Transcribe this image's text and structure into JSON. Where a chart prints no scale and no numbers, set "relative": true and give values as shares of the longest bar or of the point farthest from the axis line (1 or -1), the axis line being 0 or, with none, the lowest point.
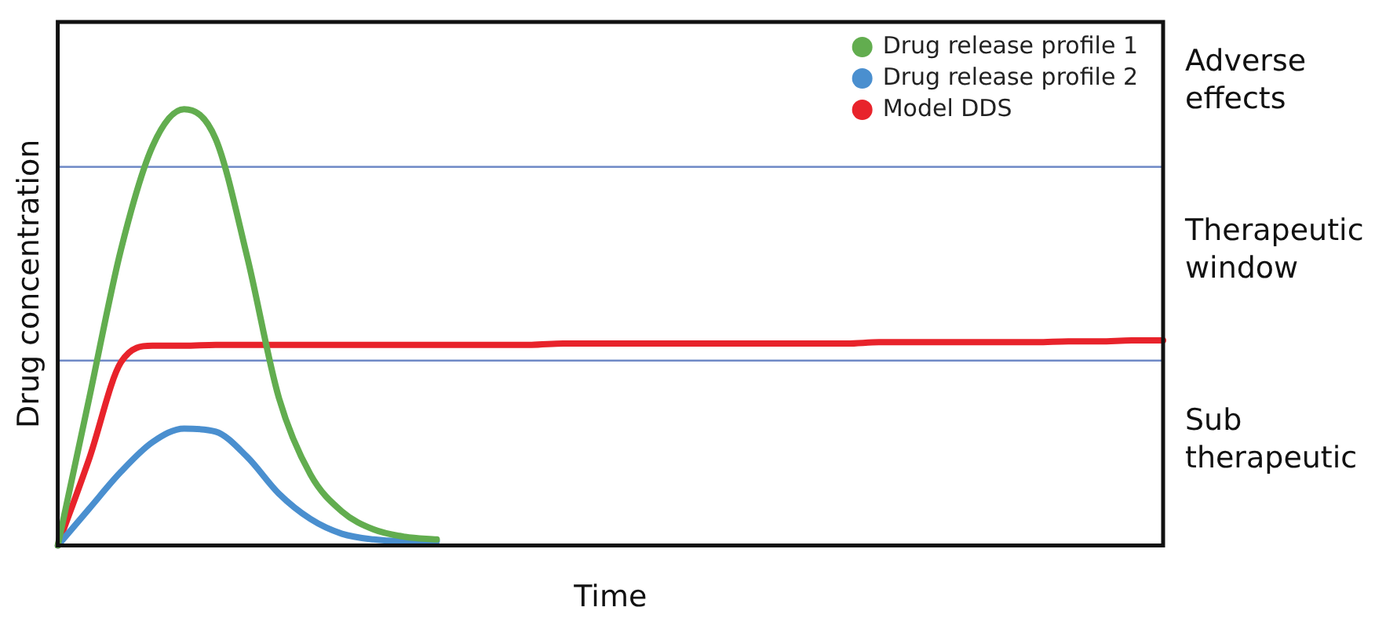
{
  "chart_data": {
    "type": "line",
    "relative": true,
    "xlabel": "Time",
    "ylabel": "Drug concentration",
    "categories": [
      null,
      null,
      null,
      null,
      null,
      null,
      null,
      null,
      null,
      null,
      null,
      null,
      null,
      null,
      null,
      null,
      null,
      null,
      null,
      null,
      null,
      null,
      null,
      null,
      null,
      null,
      null,
      null,
      null,
      null,
      null,
      null,
      null,
      null,
      null,
      null
    ],
    "series": [
      {
        "name": "Drug release profile 1",
        "color": "#62ad4f",
        "values": [
          0,
          0.339,
          0.678,
          0.915,
          1,
          0.932,
          0.661,
          0.339,
          0.163,
          0.078,
          0.037,
          0.02,
          0.014,
          null,
          null,
          null,
          null,
          null,
          null,
          null,
          null,
          null,
          null,
          null,
          null,
          null,
          null,
          null,
          null,
          null,
          null,
          null,
          null,
          null,
          null,
          null
        ]
      },
      {
        "name": "Drug release profile 2",
        "color": "#4a8fcf",
        "values": [
          0,
          0.085,
          0.169,
          0.237,
          0.268,
          0.261,
          0.203,
          0.119,
          0.061,
          0.027,
          0.014,
          0.01,
          0.01,
          null,
          null,
          null,
          null,
          null,
          null,
          null,
          null,
          null,
          null,
          null,
          null,
          null,
          null,
          null,
          null,
          null,
          null,
          null,
          null,
          null,
          null,
          null
        ]
      },
      {
        "name": "Model DDS",
        "color": "#e8232b",
        "values": [
          0,
          0.2,
          0.42,
          0.458,
          0.458,
          0.46,
          0.46,
          0.46,
          0.46,
          0.46,
          0.46,
          0.46,
          0.46,
          0.46,
          0.46,
          0.46,
          0.463,
          0.463,
          0.463,
          0.463,
          0.463,
          0.463,
          0.463,
          0.463,
          0.463,
          0.463,
          0.466,
          0.466,
          0.466,
          0.466,
          0.466,
          0.466,
          0.468,
          0.468,
          0.47,
          0.47
        ]
      }
    ],
    "ref_lines": [
      {
        "axis": "y",
        "value": 0.868,
        "color": "#6f89c6"
      },
      {
        "axis": "y",
        "value": 0.424,
        "color": "#6f89c6"
      }
    ],
    "annotations": [
      "Adverse effects",
      "Therapeutic window",
      "Sub therapeutic"
    ],
    "legend": "top right",
    "marker": "none",
    "line_style": "solid",
    "grid": false
  }
}
